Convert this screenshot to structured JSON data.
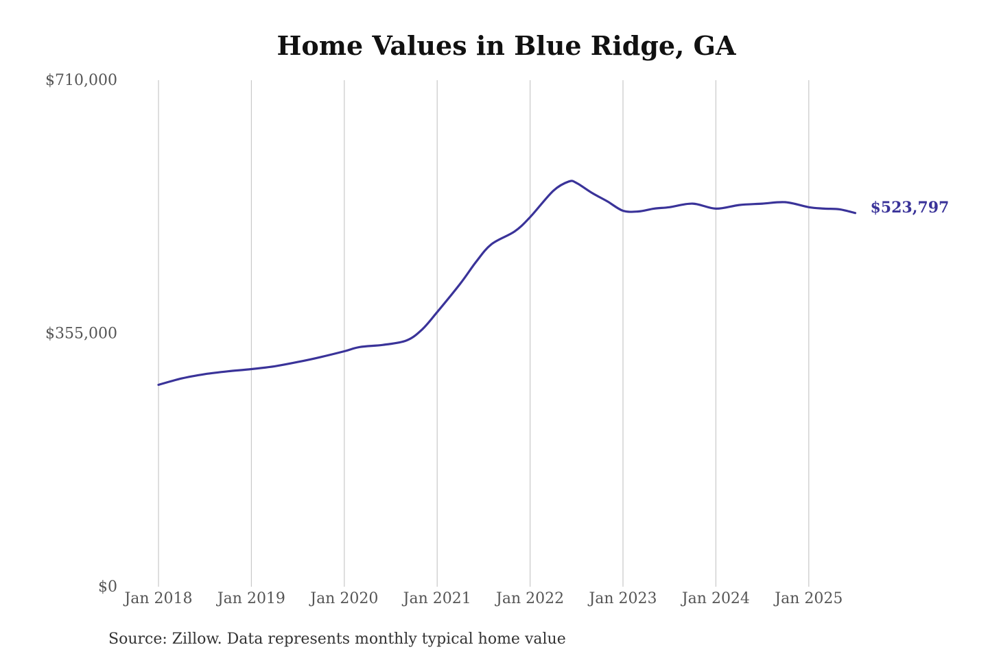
{
  "chart_data": {
    "type": "line",
    "title": "Home Values in Blue Ridge, GA",
    "xlabel": "",
    "ylabel": "",
    "ylim": [
      0,
      710000
    ],
    "x_range": [
      "2018-01",
      "2025-07"
    ],
    "y_tick_labels": [
      "$0",
      "$355,000",
      "$710,000"
    ],
    "y_tick_values": [
      0,
      355000,
      710000
    ],
    "x_tick_labels": [
      "Jan 2018",
      "Jan 2019",
      "Jan 2020",
      "Jan 2021",
      "Jan 2022",
      "Jan 2023",
      "Jan 2024",
      "Jan 2025"
    ],
    "x_tick_values": [
      "2018-01",
      "2019-01",
      "2020-01",
      "2021-01",
      "2022-01",
      "2023-01",
      "2024-01",
      "2025-01"
    ],
    "grid": "vertical",
    "series": [
      {
        "color": "#3a3399",
        "points": [
          [
            "2018-01",
            283000
          ],
          [
            "2018-04",
            292000
          ],
          [
            "2018-07",
            298000
          ],
          [
            "2018-10",
            302000
          ],
          [
            "2019-01",
            305000
          ],
          [
            "2019-04",
            309000
          ],
          [
            "2019-07",
            315000
          ],
          [
            "2019-10",
            322000
          ],
          [
            "2020-01",
            330000
          ],
          [
            "2020-03",
            336000
          ],
          [
            "2020-06",
            339000
          ],
          [
            "2020-09",
            345000
          ],
          [
            "2020-11",
            360000
          ],
          [
            "2021-01",
            385000
          ],
          [
            "2021-04",
            425000
          ],
          [
            "2021-06",
            455000
          ],
          [
            "2021-08",
            480000
          ],
          [
            "2021-11",
            498000
          ],
          [
            "2022-01",
            518000
          ],
          [
            "2022-04",
            555000
          ],
          [
            "2022-06",
            568000
          ],
          [
            "2022-07",
            566000
          ],
          [
            "2022-09",
            552000
          ],
          [
            "2022-11",
            540000
          ],
          [
            "2023-01",
            527000
          ],
          [
            "2023-03",
            526000
          ],
          [
            "2023-05",
            530000
          ],
          [
            "2023-07",
            532000
          ],
          [
            "2023-10",
            537000
          ],
          [
            "2024-01",
            530000
          ],
          [
            "2024-04",
            535000
          ],
          [
            "2024-07",
            537000
          ],
          [
            "2024-10",
            539000
          ],
          [
            "2025-01",
            532000
          ],
          [
            "2025-03",
            530000
          ],
          [
            "2025-05",
            529000
          ],
          [
            "2025-07",
            523797
          ]
        ],
        "end_label": "$523,797"
      }
    ]
  },
  "footer": {
    "source": "Source: Zillow. Data represents monthly typical home value"
  }
}
